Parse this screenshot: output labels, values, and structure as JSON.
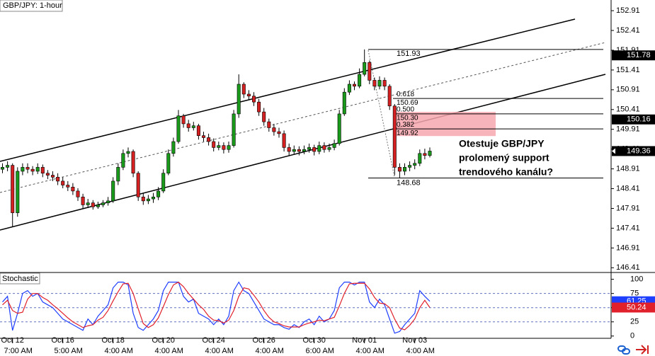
{
  "chart_data": [
    {
      "type": "candlestick",
      "title": "GBP/JPY: 1-hour",
      "categories": [
        null,
        null,
        "Oct 12",
        null,
        null,
        null,
        null,
        null,
        null,
        null,
        null,
        null,
        "Oct 16",
        null,
        null,
        null,
        null,
        null,
        null,
        null,
        null,
        null,
        "Oct 18",
        null,
        null,
        null,
        null,
        null,
        null,
        null,
        null,
        null,
        "Oct 20",
        null,
        null,
        null,
        null,
        null,
        null,
        null,
        null,
        null,
        "Oct 24",
        null,
        null,
        null,
        null,
        null,
        null,
        null,
        null,
        null,
        "Oct 26",
        null,
        null,
        null,
        null,
        null,
        null,
        null,
        null,
        null,
        "Oct 30",
        null,
        null,
        null,
        null,
        null,
        null,
        null,
        null,
        null,
        "Nov 01",
        null,
        null,
        null,
        null,
        null,
        null,
        null,
        null,
        null,
        "Nov 03",
        null,
        null,
        null
      ],
      "category_times": [
        null,
        null,
        "7:00 AM",
        null,
        null,
        null,
        null,
        null,
        null,
        null,
        null,
        null,
        "5:00 AM",
        null,
        null,
        null,
        null,
        null,
        null,
        null,
        null,
        null,
        "4:00 AM",
        null,
        null,
        null,
        null,
        null,
        null,
        null,
        null,
        null,
        "4:00 AM",
        null,
        null,
        null,
        null,
        null,
        null,
        null,
        null,
        null,
        "4:00 AM",
        null,
        null,
        null,
        null,
        null,
        null,
        null,
        null,
        null,
        "4:00 AM",
        null,
        null,
        null,
        null,
        null,
        null,
        null,
        null,
        null,
        "6:00 AM",
        null,
        null,
        null,
        null,
        null,
        null,
        null,
        null,
        null,
        "4:00 AM",
        null,
        null,
        null,
        null,
        null,
        null,
        null,
        null,
        null,
        "4:00 AM",
        null,
        null,
        null
      ],
      "open": [
        148.9,
        148.95,
        149.0,
        147.8,
        148.85,
        148.95,
        148.9,
        148.85,
        148.95,
        148.8,
        148.75,
        148.7,
        148.6,
        148.5,
        148.45,
        148.35,
        148.2,
        148.0,
        148.05,
        147.95,
        148.0,
        148.05,
        148.1,
        148.6,
        148.95,
        149.3,
        149.35,
        148.8,
        148.2,
        148.1,
        148.15,
        148.2,
        148.35,
        148.8,
        149.3,
        149.6,
        150.25,
        150.05,
        149.95,
        150.0,
        149.75,
        149.7,
        149.6,
        149.45,
        149.5,
        149.4,
        149.5,
        150.3,
        151.05,
        150.8,
        150.75,
        150.6,
        150.35,
        150.1,
        149.95,
        149.85,
        149.8,
        149.45,
        149.35,
        149.4,
        149.35,
        149.4,
        149.45,
        149.35,
        149.5,
        149.4,
        149.45,
        149.55,
        150.3,
        150.85,
        151.05,
        151.0,
        151.3,
        151.6,
        151.15,
        151.0,
        151.15,
        151.0,
        150.5,
        148.95,
        148.85,
        148.95,
        149.0,
        149.05,
        149.3,
        149.25
      ],
      "high": [
        149.05,
        149.1,
        149.05,
        148.95,
        149.05,
        149.05,
        148.98,
        149.05,
        149.02,
        148.88,
        148.85,
        148.8,
        148.7,
        148.6,
        148.55,
        148.42,
        148.28,
        148.15,
        148.12,
        148.08,
        148.12,
        148.2,
        148.7,
        149.05,
        149.4,
        149.45,
        149.4,
        148.85,
        148.3,
        148.25,
        148.3,
        148.45,
        148.9,
        149.4,
        149.7,
        150.4,
        150.3,
        150.15,
        150.1,
        150.05,
        149.85,
        149.8,
        149.68,
        149.6,
        149.58,
        149.6,
        150.4,
        151.3,
        151.1,
        150.9,
        150.85,
        150.68,
        150.45,
        150.18,
        150.05,
        149.95,
        149.88,
        149.55,
        149.5,
        149.48,
        149.5,
        149.55,
        149.52,
        149.6,
        149.58,
        149.55,
        149.65,
        150.4,
        150.95,
        151.15,
        151.12,
        151.45,
        151.93,
        151.65,
        151.22,
        151.25,
        151.22,
        151.05,
        150.55,
        149.05,
        149.05,
        149.1,
        149.15,
        149.4,
        149.42,
        149.45
      ],
      "low": [
        148.8,
        148.85,
        147.45,
        147.7,
        148.75,
        148.8,
        148.75,
        148.78,
        148.7,
        148.65,
        148.6,
        148.5,
        148.42,
        148.35,
        148.25,
        148.1,
        147.9,
        147.92,
        147.88,
        147.9,
        147.94,
        147.98,
        148.05,
        148.5,
        148.88,
        149.2,
        148.7,
        148.1,
        148.0,
        148.02,
        148.05,
        148.12,
        148.3,
        148.75,
        149.22,
        149.55,
        149.95,
        149.85,
        149.88,
        149.65,
        149.6,
        149.5,
        149.35,
        149.38,
        149.3,
        149.32,
        149.45,
        150.2,
        150.7,
        150.65,
        150.5,
        150.25,
        150.0,
        149.85,
        149.75,
        149.7,
        149.35,
        149.25,
        149.28,
        149.25,
        149.28,
        149.32,
        149.25,
        149.28,
        149.32,
        149.34,
        149.38,
        149.5,
        150.25,
        150.78,
        150.9,
        150.95,
        151.25,
        151.05,
        150.9,
        150.92,
        150.9,
        150.4,
        148.75,
        148.68,
        148.75,
        148.85,
        148.9,
        148.98,
        149.15,
        149.2
      ],
      "close": [
        148.95,
        149.0,
        147.8,
        148.85,
        148.95,
        148.9,
        148.85,
        148.95,
        148.8,
        148.75,
        148.7,
        148.6,
        148.5,
        148.45,
        148.35,
        148.2,
        148.0,
        148.05,
        147.95,
        148.0,
        148.05,
        148.1,
        148.6,
        148.95,
        149.3,
        149.35,
        148.8,
        148.2,
        148.1,
        148.15,
        148.2,
        148.35,
        148.8,
        149.3,
        149.6,
        150.25,
        150.05,
        149.95,
        150.0,
        149.75,
        149.7,
        149.6,
        149.45,
        149.5,
        149.4,
        149.5,
        150.3,
        151.05,
        150.8,
        150.75,
        150.6,
        150.35,
        150.1,
        149.95,
        149.85,
        149.8,
        149.45,
        149.35,
        149.4,
        149.35,
        149.4,
        149.45,
        149.35,
        149.5,
        149.4,
        149.45,
        149.55,
        150.3,
        150.85,
        151.05,
        151.0,
        151.3,
        151.6,
        151.15,
        151.0,
        151.15,
        151.0,
        150.5,
        148.95,
        148.85,
        148.95,
        149.0,
        149.05,
        149.3,
        149.25,
        149.36
      ],
      "up_color": "#1a9a1a",
      "down_color": "#d42020",
      "ylim": [
        146.29,
        153.18
      ],
      "yticks": [
        152.91,
        152.41,
        151.91,
        151.41,
        150.91,
        150.41,
        149.91,
        149.41,
        148.91,
        148.41,
        147.91,
        147.41,
        146.91,
        146.41
      ],
      "price_markers": [
        151.78,
        150.16
      ],
      "fib_high": 151.93,
      "fib_low": 148.68,
      "fib_levels": [
        {
          "ratio": 0.618,
          "price": 150.69
        },
        {
          "ratio": {
            "value": 0.5,
            "label": "0.500"
          },
          "price": {
            "value": 150.3,
            "label": "150.30"
          }
        },
        {
          "ratio": 0.382,
          "price": 149.92
        }
      ],
      "zone": [
        150.35,
        149.74
      ],
      "annotation": [
        "Otestuje GBP/JPY",
        "prolomený support",
        "trendového kanálu?"
      ]
    },
    {
      "type": "line",
      "title": "Stochastic",
      "series": [
        {
          "color": "#1f3fff",
          "values": [
            60,
            70,
            10,
            40,
            75,
            80,
            70,
            75,
            60,
            55,
            50,
            40,
            30,
            25,
            20,
            15,
            10,
            30,
            20,
            35,
            45,
            55,
            85,
            95,
            95,
            90,
            40,
            15,
            10,
            20,
            30,
            45,
            80,
            95,
            95,
            95,
            70,
            60,
            65,
            40,
            35,
            30,
            20,
            30,
            20,
            35,
            80,
            95,
            80,
            75,
            60,
            45,
            30,
            25,
            20,
            20,
            15,
            12,
            20,
            15,
            25,
            30,
            20,
            35,
            25,
            30,
            45,
            85,
            95,
            95,
            90,
            95,
            95,
            60,
            50,
            65,
            55,
            30,
            5,
            8,
            20,
            30,
            40,
            80,
            70,
            61.25
          ]
        },
        {
          "color": "#e0202a",
          "values": [
            55,
            63,
            45,
            40,
            42,
            65,
            75,
            75,
            68,
            63,
            55,
            48,
            40,
            32,
            25,
            20,
            15,
            18,
            20,
            28,
            33,
            45,
            62,
            78,
            92,
            93,
            75,
            48,
            22,
            15,
            20,
            32,
            52,
            73,
            90,
            95,
            87,
            75,
            65,
            55,
            47,
            35,
            28,
            27,
            23,
            28,
            45,
            70,
            85,
            83,
            72,
            60,
            45,
            33,
            25,
            22,
            18,
            16,
            16,
            16,
            20,
            23,
            25,
            28,
            27,
            30,
            33,
            53,
            75,
            92,
            93,
            93,
            93,
            83,
            68,
            58,
            57,
            50,
            30,
            14,
            11,
            19,
            30,
            50,
            63,
            50.24
          ]
        }
      ],
      "ylim": [
        -4,
        112
      ],
      "yticks": [
        100,
        75,
        50,
        25,
        0
      ],
      "levels": [
        75,
        50,
        25
      ]
    }
  ]
}
